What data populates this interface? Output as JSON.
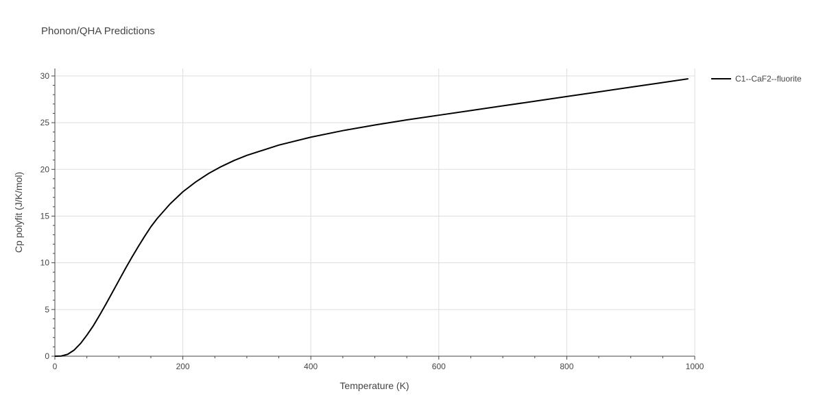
{
  "chart_data": {
    "type": "line",
    "title": "Phonon/QHA Predictions",
    "xlabel": "Temperature (K)",
    "ylabel": "Cp polyfit (J/K/mol)",
    "xlim": [
      0,
      1000
    ],
    "ylim": [
      0,
      30.8
    ],
    "xticks": [
      0,
      200,
      400,
      600,
      800,
      1000
    ],
    "yticks": [
      0,
      5,
      10,
      15,
      20,
      25,
      30
    ],
    "grid": true,
    "legend_position": "top-right",
    "series": [
      {
        "name": "C1--CaF2--fluorite",
        "color": "#000000",
        "x": [
          0,
          10,
          20,
          30,
          40,
          50,
          60,
          70,
          80,
          90,
          100,
          110,
          120,
          130,
          140,
          150,
          160,
          180,
          200,
          220,
          240,
          260,
          280,
          300,
          350,
          400,
          450,
          500,
          550,
          600,
          650,
          700,
          750,
          800,
          850,
          900,
          950,
          990
        ],
        "y": [
          0,
          0.02,
          0.2,
          0.65,
          1.35,
          2.25,
          3.25,
          4.4,
          5.6,
          6.85,
          8.1,
          9.35,
          10.55,
          11.7,
          12.8,
          13.85,
          14.75,
          16.3,
          17.6,
          18.65,
          19.55,
          20.3,
          20.95,
          21.5,
          22.6,
          23.45,
          24.15,
          24.75,
          25.3,
          25.8,
          26.3,
          26.8,
          27.3,
          27.8,
          28.3,
          28.8,
          29.3,
          29.7
        ]
      }
    ]
  }
}
